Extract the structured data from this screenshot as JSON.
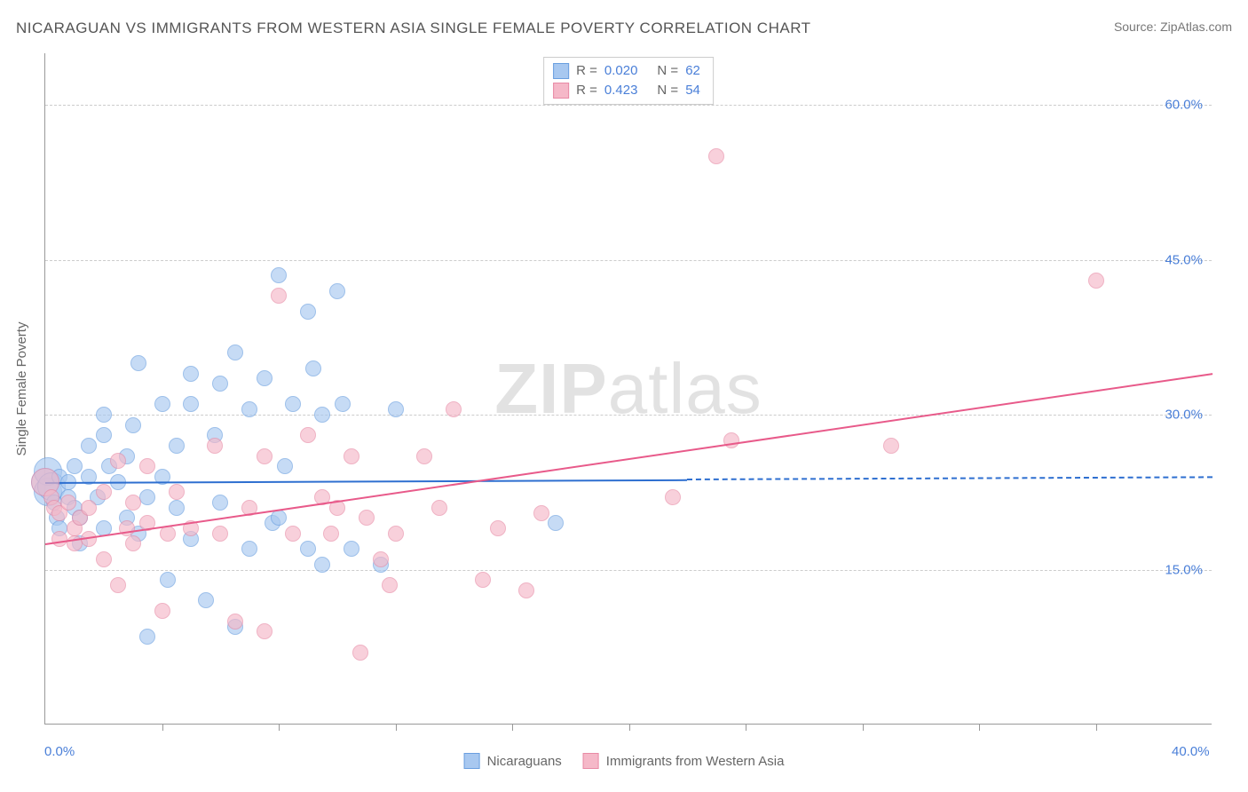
{
  "title": "NICARAGUAN VS IMMIGRANTS FROM WESTERN ASIA SINGLE FEMALE POVERTY CORRELATION CHART",
  "source_label": "Source: ",
  "source_name": "ZipAtlas.com",
  "y_axis_label": "Single Female Poverty",
  "watermark_bold": "ZIP",
  "watermark_rest": "atlas",
  "chart": {
    "type": "scatter",
    "xlim": [
      0,
      40
    ],
    "ylim": [
      0,
      65
    ],
    "y_ticks": [
      15,
      30,
      45,
      60
    ],
    "y_tick_labels": [
      "15.0%",
      "30.0%",
      "45.0%",
      "60.0%"
    ],
    "x_major_ticks": [
      0,
      40
    ],
    "x_major_labels": [
      "0.0%",
      "40.0%"
    ],
    "x_minor_ticks": [
      4,
      8,
      12,
      16,
      20,
      24,
      28,
      32,
      36
    ],
    "background_color": "#ffffff",
    "grid_color": "#cccccc",
    "axis_color": "#999999",
    "tick_label_color": "#4a7fd8",
    "series": [
      {
        "name": "Nicaraguans",
        "fill": "#a8c8f0",
        "stroke": "#6a9fe0",
        "opacity": 0.65,
        "R": "0.020",
        "N": "62",
        "trend": {
          "x1": 0,
          "y1": 23.5,
          "x2": 40,
          "y2": 24.0,
          "solid_until_x": 22,
          "color": "#2e6fd0",
          "width": 2
        },
        "points": [
          [
            0.0,
            23.5
          ],
          [
            0.1,
            22.5
          ],
          [
            0.1,
            24.5
          ],
          [
            0.2,
            23
          ],
          [
            0.3,
            21.5
          ],
          [
            0.4,
            20
          ],
          [
            0.5,
            24
          ],
          [
            0.5,
            19
          ],
          [
            0.8,
            22
          ],
          [
            0.8,
            23.5
          ],
          [
            1.0,
            21
          ],
          [
            1.0,
            25
          ],
          [
            1.2,
            20
          ],
          [
            1.2,
            17.5
          ],
          [
            1.5,
            24
          ],
          [
            1.5,
            27
          ],
          [
            1.8,
            22
          ],
          [
            2.0,
            28
          ],
          [
            2.0,
            30
          ],
          [
            2.0,
            19
          ],
          [
            2.2,
            25
          ],
          [
            2.5,
            23.5
          ],
          [
            2.8,
            20
          ],
          [
            2.8,
            26
          ],
          [
            3.0,
            29
          ],
          [
            3.2,
            18.5
          ],
          [
            3.2,
            35
          ],
          [
            3.5,
            22
          ],
          [
            3.5,
            8.5
          ],
          [
            4.0,
            31
          ],
          [
            4.0,
            24
          ],
          [
            4.2,
            14
          ],
          [
            4.5,
            21
          ],
          [
            4.5,
            27
          ],
          [
            5.0,
            34
          ],
          [
            5.0,
            31
          ],
          [
            5.0,
            18
          ],
          [
            5.5,
            12
          ],
          [
            5.8,
            28
          ],
          [
            6.0,
            33
          ],
          [
            6.0,
            21.5
          ],
          [
            6.5,
            36
          ],
          [
            6.5,
            9.5
          ],
          [
            7.0,
            30.5
          ],
          [
            7.0,
            17
          ],
          [
            7.5,
            33.5
          ],
          [
            7.8,
            19.5
          ],
          [
            8.0,
            43.5
          ],
          [
            8.0,
            20
          ],
          [
            8.2,
            25
          ],
          [
            8.5,
            31
          ],
          [
            9.0,
            40
          ],
          [
            9.0,
            17
          ],
          [
            9.2,
            34.5
          ],
          [
            9.5,
            15.5
          ],
          [
            9.5,
            30
          ],
          [
            10.0,
            42
          ],
          [
            10.2,
            31
          ],
          [
            10.5,
            17
          ],
          [
            11.5,
            15.5
          ],
          [
            12.0,
            30.5
          ],
          [
            17.5,
            19.5
          ]
        ]
      },
      {
        "name": "Immigrants from Western Asia",
        "fill": "#f5b8c8",
        "stroke": "#e88aa5",
        "opacity": 0.65,
        "R": "0.423",
        "N": "54",
        "trend": {
          "x1": 0,
          "y1": 17.5,
          "x2": 40,
          "y2": 34.0,
          "solid_until_x": 40,
          "color": "#e85a8a",
          "width": 2
        },
        "points": [
          [
            0.0,
            23.5
          ],
          [
            0.2,
            22
          ],
          [
            0.3,
            21
          ],
          [
            0.5,
            18
          ],
          [
            0.5,
            20.5
          ],
          [
            0.8,
            21.5
          ],
          [
            1.0,
            19
          ],
          [
            1.0,
            17.5
          ],
          [
            1.2,
            20
          ],
          [
            1.5,
            21
          ],
          [
            1.5,
            18
          ],
          [
            2.0,
            22.5
          ],
          [
            2.0,
            16
          ],
          [
            2.5,
            13.5
          ],
          [
            2.5,
            25.5
          ],
          [
            2.8,
            19
          ],
          [
            3.0,
            21.5
          ],
          [
            3.0,
            17.5
          ],
          [
            3.5,
            19.5
          ],
          [
            3.5,
            25
          ],
          [
            4.0,
            11
          ],
          [
            4.2,
            18.5
          ],
          [
            4.5,
            22.5
          ],
          [
            5.0,
            19
          ],
          [
            5.8,
            27
          ],
          [
            6.0,
            18.5
          ],
          [
            6.5,
            10
          ],
          [
            7.0,
            21
          ],
          [
            7.5,
            26
          ],
          [
            7.5,
            9
          ],
          [
            8.0,
            41.5
          ],
          [
            8.5,
            18.5
          ],
          [
            9.0,
            28
          ],
          [
            9.5,
            22
          ],
          [
            9.8,
            18.5
          ],
          [
            10.0,
            21
          ],
          [
            10.5,
            26
          ],
          [
            10.8,
            7
          ],
          [
            11.0,
            20
          ],
          [
            11.5,
            16
          ],
          [
            11.8,
            13.5
          ],
          [
            12.0,
            18.5
          ],
          [
            13.0,
            26
          ],
          [
            13.5,
            21
          ],
          [
            14.0,
            30.5
          ],
          [
            15.0,
            14
          ],
          [
            15.5,
            19
          ],
          [
            16.5,
            13
          ],
          [
            17.0,
            20.5
          ],
          [
            21.5,
            22
          ],
          [
            23.0,
            55
          ],
          [
            23.5,
            27.5
          ],
          [
            29.0,
            27
          ],
          [
            36.0,
            43
          ]
        ]
      }
    ]
  },
  "legend_labels": {
    "R": "R =",
    "N": "N ="
  }
}
